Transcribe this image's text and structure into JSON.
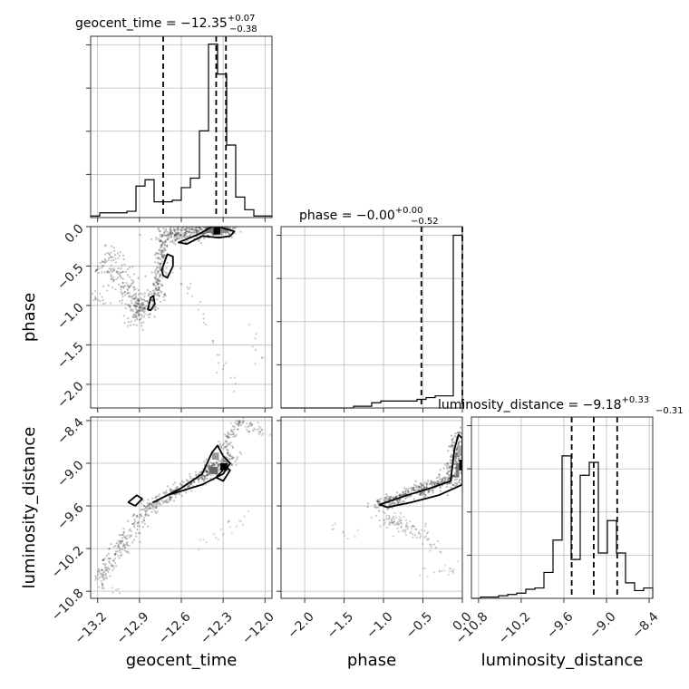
{
  "chart_data": {
    "type": "corner",
    "params": [
      {
        "name": "geocent_time",
        "label": "geocent_time",
        "range": [
          -13.25,
          -11.95
        ],
        "ticks": [
          -13.2,
          -12.9,
          -12.6,
          -12.3,
          -12.0
        ],
        "tick_labels": [
          "−13.2",
          "−12.9",
          "−12.6",
          "−12.3",
          "−12.0"
        ],
        "title": "geocent_time = −12.35",
        "title_sup": "+0.07",
        "title_sub": "−0.38",
        "quantiles": [
          -12.73,
          -12.35,
          -12.28
        ],
        "hist": {
          "edges": [
            -13.25,
            -13.185,
            -13.12,
            -13.055,
            -12.99,
            -12.925,
            -12.86,
            -12.795,
            -12.73,
            -12.665,
            -12.6,
            -12.535,
            -12.47,
            -12.405,
            -12.34,
            -12.275,
            -12.21,
            -12.145,
            -12.08,
            -12.015,
            -11.95
          ],
          "counts": [
            1,
            3,
            3,
            3,
            4,
            20,
            24,
            10,
            10,
            11,
            19,
            25,
            55,
            110,
            91,
            46,
            13,
            5,
            1,
            1
          ],
          "ymax": 115
        }
      },
      {
        "name": "phase",
        "label": "phase",
        "range": [
          -2.3,
          0.0
        ],
        "ticks": [
          -2.0,
          -1.5,
          -1.0,
          -0.5,
          0.0
        ],
        "tick_labels": [
          "−2.0",
          "−1.5",
          "−1.0",
          "−0.5",
          "0.0"
        ],
        "title": "phase = −0.00",
        "title_sup": "+0.00",
        "title_sub": "−0.52",
        "quantiles": [
          -0.52,
          0.0,
          0.0
        ],
        "hist": {
          "edges": [
            -2.3,
            -2.185,
            -2.07,
            -1.955,
            -1.84,
            -1.725,
            -1.61,
            -1.495,
            -1.38,
            -1.265,
            -1.15,
            -1.035,
            -0.92,
            -0.805,
            -0.69,
            -0.575,
            -0.46,
            -0.345,
            -0.23,
            -0.115,
            0.0
          ],
          "counts": [
            0,
            0,
            0,
            0,
            0,
            0,
            0,
            0,
            1,
            1,
            3,
            4,
            4,
            4,
            4,
            5,
            6,
            7,
            7,
            100
          ],
          "ymax": 105
        }
      },
      {
        "name": "luminosity_distance",
        "label": "luminosity_distance",
        "range": [
          -10.9,
          -8.35
        ],
        "ticks": [
          -10.8,
          -10.2,
          -9.6,
          -9.0,
          -8.4
        ],
        "tick_labels": [
          "−10.8",
          "−10.2",
          "−9.6",
          "−9.0",
          "−8.4"
        ],
        "title": "luminosity_distance = −9.18",
        "title_sup": "+0.33",
        "title_sub": "−0.31",
        "quantiles": [
          -9.49,
          -9.18,
          -8.85
        ],
        "hist": {
          "edges": [
            -10.9,
            -10.7725,
            -10.645,
            -10.5175,
            -10.39,
            -10.2625,
            -10.135,
            -10.0075,
            -9.88,
            -9.7525,
            -9.625,
            -9.4975,
            -9.37,
            -9.2425,
            -9.115,
            -8.9875,
            -8.86,
            -8.7325,
            -8.605,
            -8.4775,
            -8.35
          ],
          "counts": [
            0,
            1,
            1,
            2,
            3,
            4,
            7,
            8,
            20,
            45,
            110,
            30,
            95,
            105,
            35,
            60,
            35,
            12,
            6,
            8
          ],
          "ymax": 140
        }
      }
    ],
    "pairs": [
      {
        "x": "geocent_time",
        "y": "phase"
      },
      {
        "x": "geocent_time",
        "y": "luminosity_distance"
      },
      {
        "x": "phase",
        "y": "luminosity_distance"
      }
    ],
    "scatter_style": "gray translucent points with black 2D density contours",
    "grid": true
  }
}
